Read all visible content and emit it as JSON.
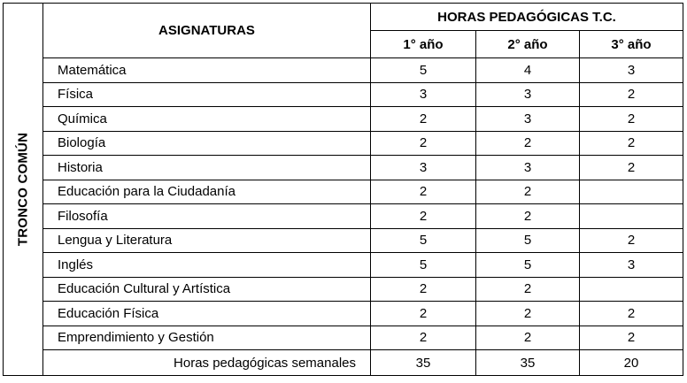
{
  "side_label": "TRONCO  COMÚN",
  "header": {
    "subjects": "ASIGNATURAS",
    "hours": "HORAS PEDAGÓGICAS T.C.",
    "years": [
      "1° año",
      "2° año",
      "3° año"
    ]
  },
  "rows": [
    {
      "subject": "Matemática",
      "hours": [
        "5",
        "4",
        "3"
      ]
    },
    {
      "subject": "Física",
      "hours": [
        "3",
        "3",
        "2"
      ]
    },
    {
      "subject": "Química",
      "hours": [
        "2",
        "3",
        "2"
      ]
    },
    {
      "subject": "Biología",
      "hours": [
        "2",
        "2",
        "2"
      ]
    },
    {
      "subject": "Historia",
      "hours": [
        "3",
        "3",
        "2"
      ]
    },
    {
      "subject": "Educación para la Ciudadanía",
      "hours": [
        "2",
        "2",
        ""
      ]
    },
    {
      "subject": "Filosofía",
      "hours": [
        "2",
        "2",
        ""
      ]
    },
    {
      "subject": "Lengua y Literatura",
      "hours": [
        "5",
        "5",
        "2"
      ]
    },
    {
      "subject": "Inglés",
      "hours": [
        "5",
        "5",
        "3"
      ]
    },
    {
      "subject": "Educación Cultural y Artística",
      "hours": [
        "2",
        "2",
        ""
      ]
    },
    {
      "subject": "Educación Física",
      "hours": [
        "2",
        "2",
        "2"
      ]
    },
    {
      "subject": "Emprendimiento y Gestión",
      "hours": [
        "2",
        "2",
        "2"
      ]
    }
  ],
  "total": {
    "label": "Horas pedagógicas semanales",
    "hours": [
      "35",
      "35",
      "20"
    ]
  }
}
